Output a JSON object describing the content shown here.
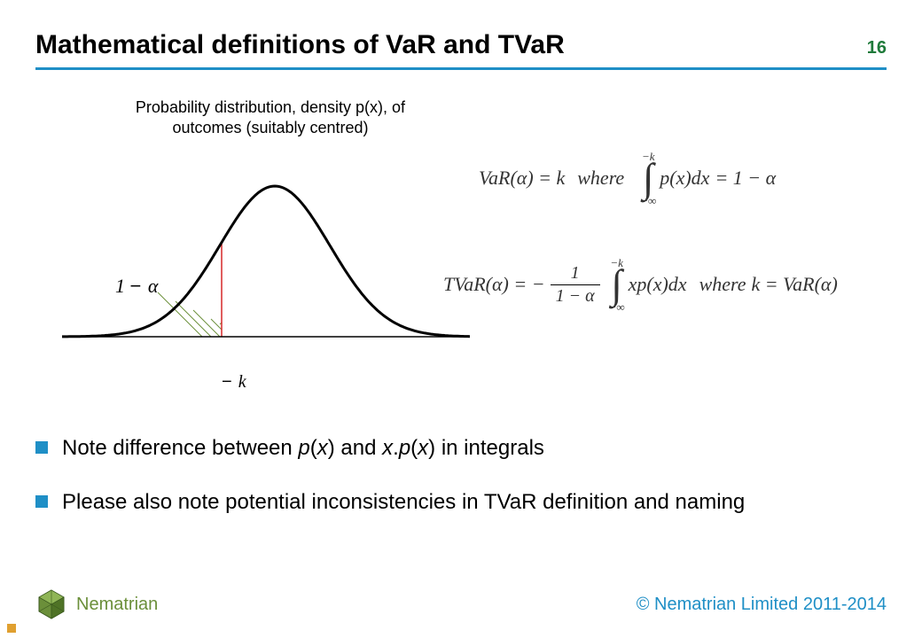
{
  "colors": {
    "accent": "#1f8fc6",
    "page_num": "#1f7a3a",
    "bullet_square": "#1f8fc6",
    "brand": "#6b8f3a",
    "copyright": "#1f8fc6",
    "curve": "#000000",
    "axis": "#000000",
    "threshold_line": "#d62728",
    "hatch": "#6b8f3a",
    "tiny_square": "#e0a030",
    "underline": "#1f8fc6"
  },
  "slide": {
    "title": "Mathematical definitions of VaR and TVaR",
    "page_number": "16"
  },
  "chart": {
    "caption": "Probability distribution, density p(x), of outcomes (suitably centred)",
    "tail_area_label_html": "1 <span class='minus'>−</span> <i>α</i>",
    "threshold_label_html": "<span class='minus'>−</span> <i>k</i>",
    "curve_width": 3,
    "axis_width": 1.5,
    "threshold_width": 1.5,
    "hatch_width": 1,
    "threshold_x": 180,
    "baseline_y": 190,
    "xlim": [
      0,
      460
    ],
    "bell_mu": 240,
    "bell_sigma": 62,
    "bell_peak_height": 170,
    "hatch_lines": [
      [
        158,
        190,
        108,
        140
      ],
      [
        168,
        190,
        128,
        150
      ],
      [
        178,
        190,
        148,
        160
      ],
      [
        180,
        182,
        168,
        170
      ],
      [
        180,
        174,
        178,
        176
      ]
    ]
  },
  "equations": {
    "var": {
      "lhs": "VaR(α) = k",
      "where": "where",
      "int_upper": "−k",
      "int_lower": "−∞",
      "integrand": "p(x)dx",
      "rhs": "= 1 − α"
    },
    "tvar": {
      "lhs": "TVaR(α) = −",
      "frac_num": "1",
      "frac_den": "1 − α",
      "int_upper": "−k",
      "int_lower": "−∞",
      "integrand": "xp(x)dx",
      "where": "where",
      "cond": "k = VaR(α)"
    }
  },
  "bullets": [
    {
      "html": "Note difference between <i>p</i>(<i>x</i>) and <i>x</i>.<i>p</i>(<i>x</i>) in integrals"
    },
    {
      "html": "Please also note potential inconsistencies in TVaR definition and naming"
    }
  ],
  "footer": {
    "brand": "Nematrian",
    "copyright": "© Nematrian Limited 2011-2014"
  }
}
